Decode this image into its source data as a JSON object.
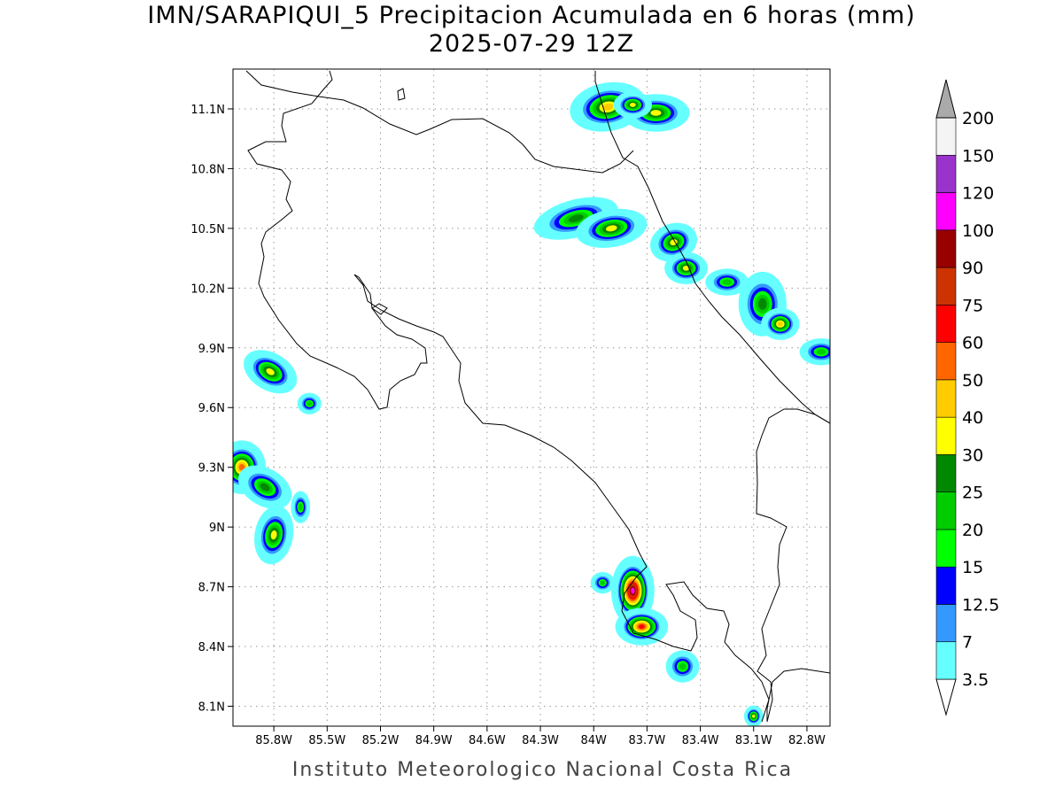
{
  "title": {
    "line1": "IMN/SARAPIQUI_5 Precipitacion Acumulada en 6 horas (mm)",
    "line2": "2025-07-29 12Z"
  },
  "footer": "Instituto Meteorologico Nacional Costa Rica",
  "axes": {
    "lon_range": [
      -86.03,
      -82.67
    ],
    "lat_range": [
      8.0,
      11.3
    ],
    "lon_ticks": [
      {
        "value": -85.8,
        "label": "85.8W"
      },
      {
        "value": -85.5,
        "label": "85.5W"
      },
      {
        "value": -85.2,
        "label": "85.2W"
      },
      {
        "value": -84.9,
        "label": "84.9W"
      },
      {
        "value": -84.6,
        "label": "84.6W"
      },
      {
        "value": -84.3,
        "label": "84.3W"
      },
      {
        "value": -84.0,
        "label": "84W"
      },
      {
        "value": -83.7,
        "label": "83.7W"
      },
      {
        "value": -83.4,
        "label": "83.4W"
      },
      {
        "value": -83.1,
        "label": "83.1W"
      },
      {
        "value": -82.8,
        "label": "82.8W"
      }
    ],
    "lat_ticks": [
      {
        "value": 11.1,
        "label": "11.1N"
      },
      {
        "value": 10.8,
        "label": "10.8N"
      },
      {
        "value": 10.5,
        "label": "10.5N"
      },
      {
        "value": 10.2,
        "label": "10.2N"
      },
      {
        "value": 9.9,
        "label": "9.9N"
      },
      {
        "value": 9.6,
        "label": "9.6N"
      },
      {
        "value": 9.3,
        "label": "9.3N"
      },
      {
        "value": 9.0,
        "label": "9N"
      },
      {
        "value": 8.7,
        "label": "8.7N"
      },
      {
        "value": 8.4,
        "label": "8.4N"
      },
      {
        "value": 8.1,
        "label": "8.1N"
      }
    ],
    "grid": "dotted"
  },
  "legend": {
    "placement": "right",
    "levels": [
      {
        "label": "3.5",
        "color": "#66ffff"
      },
      {
        "label": "7",
        "color": "#3399ff"
      },
      {
        "label": "12.5",
        "color": "#0000ff"
      },
      {
        "label": "15",
        "color": "#00ff00"
      },
      {
        "label": "20",
        "color": "#00cc00"
      },
      {
        "label": "25",
        "color": "#008800"
      },
      {
        "label": "30",
        "color": "#ffff00"
      },
      {
        "label": "40",
        "color": "#ffcc00"
      },
      {
        "label": "50",
        "color": "#ff6600"
      },
      {
        "label": "60",
        "color": "#ff0000"
      },
      {
        "label": "75",
        "color": "#cc3300"
      },
      {
        "label": "90",
        "color": "#990000"
      },
      {
        "label": "100",
        "color": "#ff00ff"
      },
      {
        "label": "120",
        "color": "#9933cc"
      },
      {
        "label": "150",
        "color": "#f4f4f4"
      },
      {
        "label": "200",
        "color": "#aaaaaa"
      }
    ]
  },
  "precip_cells": [
    {
      "lon": -83.92,
      "lat": 11.11,
      "rx": 0.16,
      "ry": 0.09,
      "rot": -10,
      "max_mm": 45
    },
    {
      "lon": -83.65,
      "lat": 11.08,
      "rx": 0.14,
      "ry": 0.07,
      "rot": 0,
      "max_mm": 35
    },
    {
      "lon": -83.78,
      "lat": 11.12,
      "rx": 0.08,
      "ry": 0.05,
      "rot": 0,
      "max_mm": 32
    },
    {
      "lon": -84.1,
      "lat": 10.55,
      "rx": 0.18,
      "ry": 0.07,
      "rot": -15,
      "max_mm": 28
    },
    {
      "lon": -83.9,
      "lat": 10.5,
      "rx": 0.15,
      "ry": 0.07,
      "rot": -10,
      "max_mm": 35
    },
    {
      "lon": -83.55,
      "lat": 10.43,
      "rx": 0.1,
      "ry": 0.07,
      "rot": -20,
      "max_mm": 33
    },
    {
      "lon": -83.48,
      "lat": 10.3,
      "rx": 0.09,
      "ry": 0.06,
      "rot": 0,
      "max_mm": 35
    },
    {
      "lon": -83.25,
      "lat": 10.23,
      "rx": 0.09,
      "ry": 0.05,
      "rot": 0,
      "max_mm": 22
    },
    {
      "lon": -83.05,
      "lat": 10.12,
      "rx": 0.1,
      "ry": 0.12,
      "rot": 0,
      "max_mm": 28
    },
    {
      "lon": -82.95,
      "lat": 10.02,
      "rx": 0.08,
      "ry": 0.06,
      "rot": 0,
      "max_mm": 45
    },
    {
      "lon": -82.72,
      "lat": 9.88,
      "rx": 0.09,
      "ry": 0.05,
      "rot": 0,
      "max_mm": 20
    },
    {
      "lon": -85.82,
      "lat": 9.78,
      "rx": 0.12,
      "ry": 0.07,
      "rot": 30,
      "max_mm": 35
    },
    {
      "lon": -85.6,
      "lat": 9.62,
      "rx": 0.05,
      "ry": 0.04,
      "rot": 0,
      "max_mm": 20
    },
    {
      "lon": -85.98,
      "lat": 9.3,
      "rx": 0.1,
      "ry": 0.1,
      "rot": 0,
      "max_mm": 55
    },
    {
      "lon": -85.85,
      "lat": 9.2,
      "rx": 0.12,
      "ry": 0.07,
      "rot": 30,
      "max_mm": 25
    },
    {
      "lon": -85.8,
      "lat": 8.96,
      "rx": 0.08,
      "ry": 0.11,
      "rot": 10,
      "max_mm": 35
    },
    {
      "lon": -85.65,
      "lat": 9.1,
      "rx": 0.04,
      "ry": 0.06,
      "rot": 0,
      "max_mm": 22
    },
    {
      "lon": -83.78,
      "lat": 8.68,
      "rx": 0.09,
      "ry": 0.13,
      "rot": 0,
      "max_mm": 100
    },
    {
      "lon": -83.73,
      "lat": 8.5,
      "rx": 0.11,
      "ry": 0.07,
      "rot": 0,
      "max_mm": 70
    },
    {
      "lon": -83.95,
      "lat": 8.72,
      "rx": 0.05,
      "ry": 0.04,
      "rot": 0,
      "max_mm": 20
    },
    {
      "lon": -83.5,
      "lat": 8.3,
      "rx": 0.07,
      "ry": 0.06,
      "rot": 0,
      "max_mm": 22
    },
    {
      "lon": -83.1,
      "lat": 8.05,
      "rx": 0.04,
      "ry": 0.04,
      "rot": 0,
      "max_mm": 30
    }
  ]
}
